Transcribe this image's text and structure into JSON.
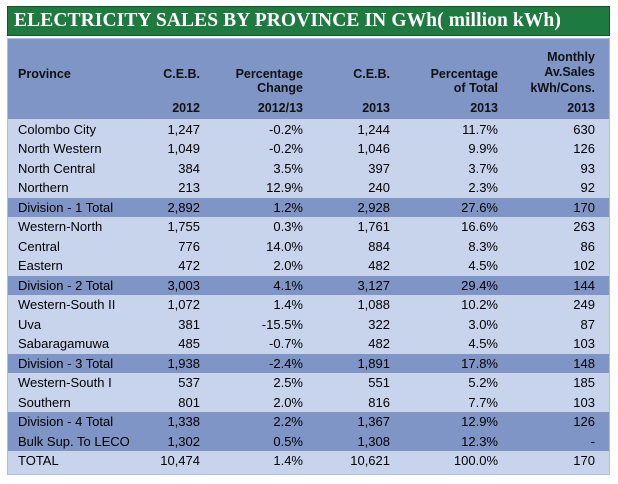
{
  "title": "ELECTRICITY SALES BY PROVINCE IN GWh( million kWh)",
  "headers": {
    "province": "Province",
    "ceb_2012": "C.E.B.",
    "pct_change_line1": "Percentage",
    "pct_change_line2": "Change",
    "ceb_2013": "C.E.B.",
    "pct_total_line1": "Percentage",
    "pct_total_line2": "of Total",
    "monthly_line1": "Monthly",
    "monthly_line2": "Av.Sales",
    "monthly_line3": "kWh/Cons.",
    "year_2012": "2012",
    "year_2012_13": "2012/13",
    "year_2013_a": "2013",
    "year_2013_b": "2013",
    "year_2013_c": "2013"
  },
  "rows": [
    {
      "province": "Colombo City",
      "ceb2012": "1,247",
      "change": "-0.2%",
      "ceb2013": "1,244",
      "pct_total": "11.7%",
      "monthly": "630",
      "division": false
    },
    {
      "province": "North Western",
      "ceb2012": "1,049",
      "change": "-0.2%",
      "ceb2013": "1,046",
      "pct_total": "9.9%",
      "monthly": "126",
      "division": false
    },
    {
      "province": "North Central",
      "ceb2012": "384",
      "change": "3.5%",
      "ceb2013": "397",
      "pct_total": "3.7%",
      "monthly": "93",
      "division": false
    },
    {
      "province": "Northern",
      "ceb2012": "213",
      "change": "12.9%",
      "ceb2013": "240",
      "pct_total": "2.3%",
      "monthly": "92",
      "division": false
    },
    {
      "province": "Division - 1  Total",
      "ceb2012": "2,892",
      "change": "1.2%",
      "ceb2013": "2,928",
      "pct_total": "27.6%",
      "monthly": "170",
      "division": true
    },
    {
      "province": "Western-North",
      "ceb2012": "1,755",
      "change": "0.3%",
      "ceb2013": "1,761",
      "pct_total": "16.6%",
      "monthly": "263",
      "division": false
    },
    {
      "province": "Central",
      "ceb2012": "776",
      "change": "14.0%",
      "ceb2013": "884",
      "pct_total": "8.3%",
      "monthly": "86",
      "division": false
    },
    {
      "province": "Eastern",
      "ceb2012": "472",
      "change": "2.0%",
      "ceb2013": "482",
      "pct_total": "4.5%",
      "monthly": "102",
      "division": false
    },
    {
      "province": "Division - 2 Total",
      "ceb2012": "3,003",
      "change": "4.1%",
      "ceb2013": "3,127",
      "pct_total": "29.4%",
      "monthly": "144",
      "division": true
    },
    {
      "province": "Western-South II",
      "ceb2012": "1,072",
      "change": "1.4%",
      "ceb2013": "1,088",
      "pct_total": "10.2%",
      "monthly": "249",
      "division": false
    },
    {
      "province": "Uva",
      "ceb2012": "381",
      "change": "-15.5%",
      "ceb2013": "322",
      "pct_total": "3.0%",
      "monthly": "87",
      "division": false
    },
    {
      "province": "Sabaragamuwa",
      "ceb2012": "485",
      "change": "-0.7%",
      "ceb2013": "482",
      "pct_total": "4.5%",
      "monthly": "103",
      "division": false
    },
    {
      "province": "Division - 3 Total",
      "ceb2012": "1,938",
      "change": "-2.4%",
      "ceb2013": "1,891",
      "pct_total": "17.8%",
      "monthly": "148",
      "division": true
    },
    {
      "province": "Western-South I",
      "ceb2012": "537",
      "change": "2.5%",
      "ceb2013": "551",
      "pct_total": "5.2%",
      "monthly": "185",
      "division": false
    },
    {
      "province": "Southern",
      "ceb2012": "801",
      "change": "2.0%",
      "ceb2013": "816",
      "pct_total": "7.7%",
      "monthly": "103",
      "division": false
    },
    {
      "province": "Division - 4 Total",
      "ceb2012": "1,338",
      "change": "2.2%",
      "ceb2013": "1,367",
      "pct_total": "12.9%",
      "monthly": "126",
      "division": true
    },
    {
      "province": "Bulk Sup. To LECO",
      "ceb2012": "1,302",
      "change": "0.5%",
      "ceb2013": "1,308",
      "pct_total": "12.3%",
      "monthly": "-",
      "division": true
    },
    {
      "province": "TOTAL",
      "ceb2012": "10,474",
      "change": "1.4%",
      "ceb2013": "10,621",
      "pct_total": "100.0%",
      "monthly": "170",
      "division": false
    }
  ]
}
